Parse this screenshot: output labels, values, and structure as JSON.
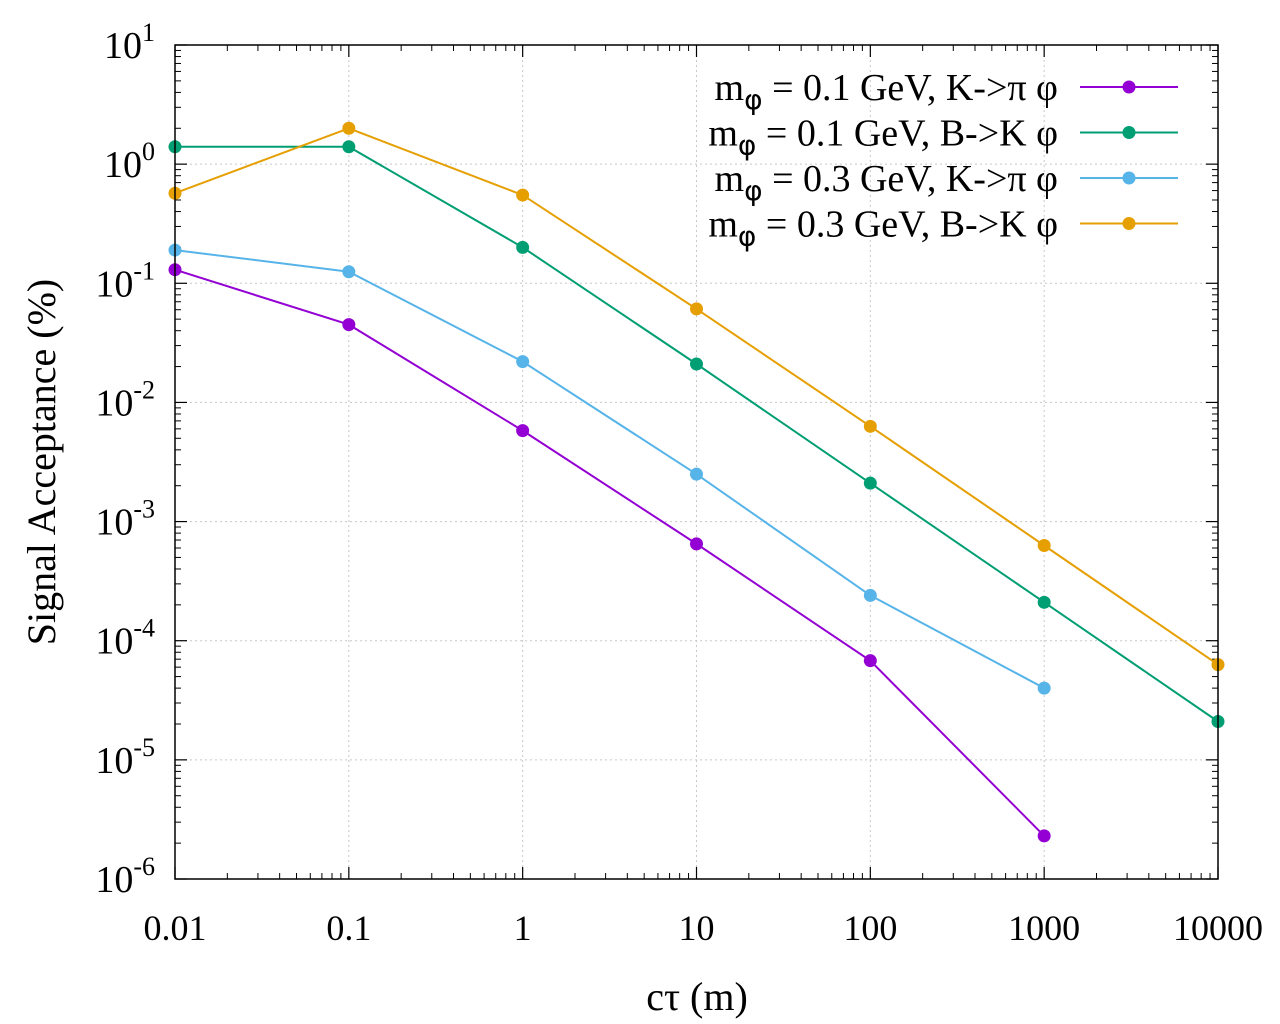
{
  "chart_data": {
    "type": "line",
    "title": "",
    "xlabel": "cτ (m)",
    "ylabel": "Signal Acceptance (%)",
    "xscale": "log",
    "yscale": "log",
    "xlim": [
      0.01,
      10000
    ],
    "ylim": [
      1e-06,
      10
    ],
    "grid": true,
    "legend_position": "top-right",
    "x_ticks": [
      {
        "value": 0.01,
        "label": "0.01"
      },
      {
        "value": 0.1,
        "label": "0.1"
      },
      {
        "value": 1,
        "label": "1"
      },
      {
        "value": 10,
        "label": "10"
      },
      {
        "value": 100,
        "label": "100"
      },
      {
        "value": 1000,
        "label": "1000"
      },
      {
        "value": 10000,
        "label": "10000"
      }
    ],
    "y_ticks": [
      {
        "value": 10,
        "base": "10",
        "exp": "1"
      },
      {
        "value": 1,
        "base": "10",
        "exp": "0"
      },
      {
        "value": 0.1,
        "base": "10",
        "exp": "-1"
      },
      {
        "value": 0.01,
        "base": "10",
        "exp": "-2"
      },
      {
        "value": 0.001,
        "base": "10",
        "exp": "-3"
      },
      {
        "value": 0.0001,
        "base": "10",
        "exp": "-4"
      },
      {
        "value": 1e-05,
        "base": "10",
        "exp": "-5"
      },
      {
        "value": 1e-06,
        "base": "10",
        "exp": "-6"
      }
    ],
    "series": [
      {
        "name": "mφ = 0.1 GeV, K->π φ",
        "legend_m": "m",
        "legend_sub": "φ",
        "legend_text": " = 0.1 GeV, K->π φ",
        "color": "#9400D3",
        "x": [
          0.01,
          0.1,
          1,
          10,
          100,
          1000
        ],
        "y": [
          0.13,
          0.045,
          0.0058,
          0.00065,
          6.8e-05,
          2.3e-06
        ]
      },
      {
        "name": "mφ = 0.1 GeV, B->K φ",
        "legend_m": "m",
        "legend_sub": "φ",
        "legend_text": " = 0.1 GeV, B->K φ",
        "color": "#009E73",
        "x": [
          0.01,
          0.1,
          1,
          10,
          100,
          1000,
          10000
        ],
        "y": [
          1.4,
          1.4,
          0.2,
          0.021,
          0.0021,
          0.00021,
          2.1e-05
        ]
      },
      {
        "name": "mφ = 0.3 GeV, K->π φ",
        "legend_m": "m",
        "legend_sub": "φ",
        "legend_text": " = 0.3 GeV, K->π φ",
        "color": "#56B4E9",
        "x": [
          0.01,
          0.1,
          1,
          10,
          100,
          1000
        ],
        "y": [
          0.19,
          0.125,
          0.022,
          0.0025,
          0.00024,
          4e-05
        ]
      },
      {
        "name": "mφ = 0.3 GeV, B->K φ",
        "legend_m": "m",
        "legend_sub": "φ",
        "legend_text": " = 0.3 GeV, B->K φ",
        "color": "#E69F00",
        "x": [
          0.01,
          0.1,
          1,
          10,
          100,
          1000,
          10000
        ],
        "y": [
          0.57,
          2.0,
          0.55,
          0.061,
          0.0063,
          0.00063,
          6.3e-05
        ]
      }
    ]
  }
}
